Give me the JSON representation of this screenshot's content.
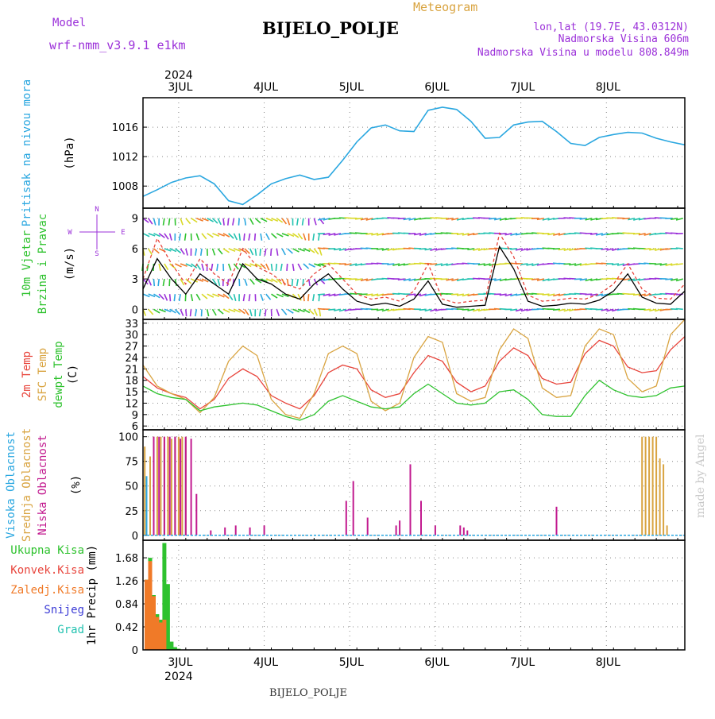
{
  "header": {
    "model_label": "Model",
    "model_name": "wrf-nmm_v3.9.1 e1km",
    "title": "BIJELO_POLJE",
    "subtitle": "Meteogram",
    "lonlat": "lon,lat (19.7E, 43.0312N)",
    "elev": "Nadmorska Visina 606m",
    "elev_model": "Nadmorska Visina u modelu 808.849m",
    "credit": "made by Angel",
    "footer": "BIJELO_POLJE"
  },
  "colors": {
    "pressure": "#2aa7e0",
    "temp": "#e8453c",
    "sfc": "#d9a441",
    "dewpt": "#2ec22e",
    "high_cloud": "#2aa7e0",
    "mid_cloud": "#d9a441",
    "low_cloud": "#c21a8f",
    "precip_total": "#2ec22e",
    "precip_conv": "#e8453c",
    "precip_strat": "#f07a28",
    "snow": "#3c3cd6",
    "hail": "#22c2b0",
    "wind_label": "#2ec22e",
    "compass": "#9b30d9",
    "model_text": "#9b30d9"
  },
  "chart_data": {
    "time_axis": {
      "year": "2024",
      "days": [
        "3JUL",
        "4JUL",
        "5JUL",
        "6JUL",
        "7JUL",
        "8JUL"
      ],
      "hour_start": -10,
      "hour_end": 142
    },
    "panels": [
      {
        "id": "pressure",
        "type": "line",
        "ylabel_lines": [
          "Pritisak na nivou mora"
        ],
        "units": "(hPa)",
        "ylim": [
          1005,
          1020
        ],
        "yticks": [
          1008,
          1012,
          1016
        ],
        "series": [
          {
            "color_key": "pressure",
            "x": [
              -10,
              -6,
              -2,
              2,
              6,
              10,
              14,
              18,
              22,
              26,
              30,
              34,
              38,
              42,
              46,
              50,
              54,
              58,
              62,
              66,
              70,
              74,
              78,
              82,
              86,
              90,
              94,
              98,
              102,
              106,
              110,
              114,
              118,
              122,
              126,
              130,
              134,
              138,
              142
            ],
            "y": [
              1006.6,
              1007.5,
              1008.5,
              1009.1,
              1009.4,
              1008.3,
              1006.0,
              1005.5,
              1006.8,
              1008.3,
              1009.0,
              1009.5,
              1008.9,
              1009.2,
              1011.5,
              1014.0,
              1015.9,
              1016.3,
              1015.5,
              1015.4,
              1018.3,
              1018.7,
              1018.4,
              1016.8,
              1014.5,
              1014.6,
              1016.3,
              1016.7,
              1016.8,
              1015.4,
              1013.8,
              1013.5,
              1014.6,
              1015.0,
              1015.3,
              1015.2,
              1014.5,
              1014.0,
              1013.6
            ]
          }
        ]
      },
      {
        "id": "wind",
        "type": "line",
        "ylabel_lines": [
          "10m Vjetar",
          "Brzina i Pravac"
        ],
        "units": "(m/s)",
        "compass": [
          "N",
          "W",
          "E",
          "S"
        ],
        "ylim": [
          -1,
          10
        ],
        "yticks": [
          0,
          3,
          6,
          9
        ],
        "series": [
          {
            "color_key": "speed",
            "x": [
              -10,
              -6,
              -2,
              2,
              6,
              10,
              14,
              18,
              22,
              26,
              30,
              34,
              38,
              42,
              46,
              50,
              54,
              58,
              62,
              66,
              70,
              74,
              78,
              82,
              86,
              90,
              94,
              98,
              102,
              106,
              110,
              114,
              118,
              122,
              126,
              130,
              134,
              138,
              142
            ],
            "y": [
              2.0,
              5.0,
              3.0,
              1.5,
              3.5,
              2.5,
              1.5,
              4.5,
              3.0,
              2.5,
              1.5,
              1.0,
              2.5,
              3.5,
              2.0,
              0.8,
              0.4,
              0.6,
              0.3,
              1.0,
              2.8,
              0.5,
              0.2,
              0.3,
              0.4,
              6.2,
              4.0,
              0.8,
              0.3,
              0.4,
              0.6,
              0.5,
              0.9,
              1.8,
              3.5,
              1.2,
              0.6,
              0.5,
              1.8
            ]
          },
          {
            "color_key": "gust",
            "x": [
              -10,
              -6,
              -2,
              2,
              6,
              10,
              14,
              18,
              22,
              26,
              30,
              34,
              38,
              42,
              46,
              50,
              54,
              58,
              62,
              66,
              70,
              74,
              78,
              82,
              86,
              90,
              94,
              98,
              102,
              106,
              110,
              114,
              118,
              122,
              126,
              130,
              134,
              138,
              142
            ],
            "y": [
              3.0,
              7.0,
              4.5,
              2.5,
              5.0,
              3.5,
              2.5,
              6.0,
              4.2,
              3.5,
              2.5,
              2.0,
              3.5,
              4.5,
              3.0,
              1.5,
              1.0,
              1.2,
              0.8,
              1.8,
              4.5,
              1.0,
              0.6,
              0.8,
              0.9,
              7.5,
              5.2,
              1.4,
              0.8,
              0.9,
              1.1,
              1.0,
              1.5,
              2.5,
              4.5,
              2.0,
              1.1,
              1.0,
              2.5
            ]
          }
        ]
      },
      {
        "id": "temp",
        "type": "line",
        "ylabel_lines": [
          "2m Temp",
          "SFC Temp",
          "dewpt Temp"
        ],
        "units": "(C)",
        "ylim": [
          5,
          34
        ],
        "yticks": [
          6,
          9,
          12,
          15,
          18,
          21,
          24,
          27,
          30,
          33
        ],
        "series": [
          {
            "color_key": "temp",
            "x": [
              -10,
              -6,
              -2,
              2,
              6,
              10,
              14,
              18,
              22,
              26,
              30,
              34,
              38,
              42,
              46,
              50,
              54,
              58,
              62,
              66,
              70,
              74,
              78,
              82,
              86,
              90,
              94,
              98,
              102,
              106,
              110,
              114,
              118,
              122,
              126,
              130,
              134,
              138,
              142
            ],
            "y": [
              19.0,
              16.0,
              14.5,
              13.5,
              10.5,
              13.0,
              18.5,
              21.0,
              19.0,
              14.0,
              12.0,
              10.5,
              14.0,
              20.0,
              22.0,
              21.0,
              15.5,
              13.5,
              14.5,
              20.0,
              24.5,
              23.0,
              17.5,
              15.0,
              16.5,
              23.0,
              26.5,
              24.5,
              18.5,
              17.0,
              17.5,
              25.0,
              28.5,
              27.0,
              21.5,
              20.0,
              20.5,
              26.0,
              29.5
            ]
          },
          {
            "color_key": "sfc",
            "x": [
              -10,
              -6,
              -2,
              2,
              6,
              10,
              14,
              18,
              22,
              26,
              30,
              34,
              38,
              42,
              46,
              50,
              54,
              58,
              62,
              66,
              70,
              74,
              78,
              82,
              86,
              90,
              94,
              98,
              102,
              106,
              110,
              114,
              118,
              122,
              126,
              130,
              134,
              138,
              142
            ],
            "y": [
              22.0,
              16.5,
              14.5,
              13.0,
              9.5,
              13.5,
              23.0,
              27.0,
              24.5,
              13.0,
              9.0,
              8.0,
              14.5,
              25.0,
              27.0,
              25.0,
              12.5,
              10.0,
              12.0,
              24.0,
              29.5,
              28.0,
              14.5,
              12.5,
              13.5,
              26.0,
              31.5,
              29.0,
              16.0,
              13.5,
              14.0,
              27.0,
              31.5,
              30.0,
              18.5,
              15.0,
              16.5,
              30.0,
              34.0
            ]
          },
          {
            "color_key": "dewpt",
            "x": [
              -10,
              -6,
              -2,
              2,
              6,
              10,
              14,
              18,
              22,
              26,
              30,
              34,
              38,
              42,
              46,
              50,
              54,
              58,
              62,
              66,
              70,
              74,
              78,
              82,
              86,
              90,
              94,
              98,
              102,
              106,
              110,
              114,
              118,
              122,
              126,
              130,
              134,
              138,
              142
            ],
            "y": [
              16.5,
              14.5,
              13.5,
              13.0,
              10.0,
              11.0,
              11.5,
              12.0,
              11.5,
              10.0,
              8.5,
              7.5,
              9.0,
              12.5,
              14.0,
              12.5,
              11.0,
              10.5,
              11.0,
              14.5,
              17.0,
              14.5,
              12.0,
              11.5,
              12.0,
              15.0,
              15.5,
              13.0,
              9.0,
              8.5,
              8.5,
              14.0,
              18.0,
              15.5,
              14.0,
              13.5,
              14.0,
              16.0,
              16.5
            ]
          }
        ]
      },
      {
        "id": "cloud",
        "type": "bar",
        "ylabel_lines": [
          "Visoka Oblacnost",
          "Srednja Oblacnost",
          "Niska Oblacnost"
        ],
        "units": "(%)",
        "ylim": [
          -5,
          107
        ],
        "yticks": [
          0,
          25,
          50,
          75,
          100
        ],
        "series": [
          {
            "color_key": "high_cloud",
            "x": [
              -9,
              -8,
              -4,
              -1,
              2
            ],
            "y": [
              60,
              52,
              88,
              100,
              99
            ]
          },
          {
            "color_key": "mid_cloud",
            "x": [
              -9.5,
              -8,
              -7,
              -6,
              -5,
              -4,
              -3,
              -2,
              -1,
              0,
              1,
              2,
              130,
              131,
              132,
              133,
              134,
              135,
              136,
              137
            ],
            "y": [
              90,
              80,
              100,
              100,
              100,
              100,
              100,
              98,
              100,
              100,
              100,
              100,
              100,
              100,
              100,
              100,
              100,
              78,
              72,
              10
            ]
          },
          {
            "color_key": "low_cloud",
            "x": [
              -7,
              -5.5,
              -4,
              -2.5,
              -1,
              0.5,
              2,
              3.5,
              5,
              9,
              13,
              16,
              20,
              24,
              47,
              49,
              53,
              61,
              62,
              65,
              68,
              72,
              79,
              80,
              81,
              106
            ],
            "y": [
              100,
              100,
              100,
              100,
              100,
              98,
              100,
              98,
              42,
              5,
              8,
              10,
              8,
              10,
              35,
              55,
              18,
              10,
              15,
              72,
              35,
              10,
              10,
              8,
              5,
              29
            ]
          }
        ]
      },
      {
        "id": "precip",
        "type": "bar",
        "ylabel_lines": [
          "1hr Precip (mm)"
        ],
        "legend": [
          "Ukupna Kisa",
          "Konvek.Kisa",
          "Zaledj.Kisa",
          "Snijeg",
          "Grad"
        ],
        "ylim": [
          0,
          2.0
        ],
        "yticks": [
          0,
          0.42,
          0.84,
          1.26,
          1.68
        ],
        "series": [
          {
            "color_key": "precip_total",
            "x": [
              -9,
              -8,
              -7,
              -6,
              -5,
              -4,
              -3,
              -2,
              -1,
              0
            ],
            "y": [
              1.28,
              1.68,
              1.0,
              0.65,
              0.55,
              1.95,
              1.2,
              0.15,
              0.05,
              0.02
            ]
          },
          {
            "color_key": "precip_strat",
            "x": [
              -9,
              -8,
              -7,
              -6,
              -5,
              -4
            ],
            "y": [
              1.28,
              1.62,
              0.98,
              0.6,
              0.5,
              0.55
            ]
          }
        ]
      }
    ]
  }
}
